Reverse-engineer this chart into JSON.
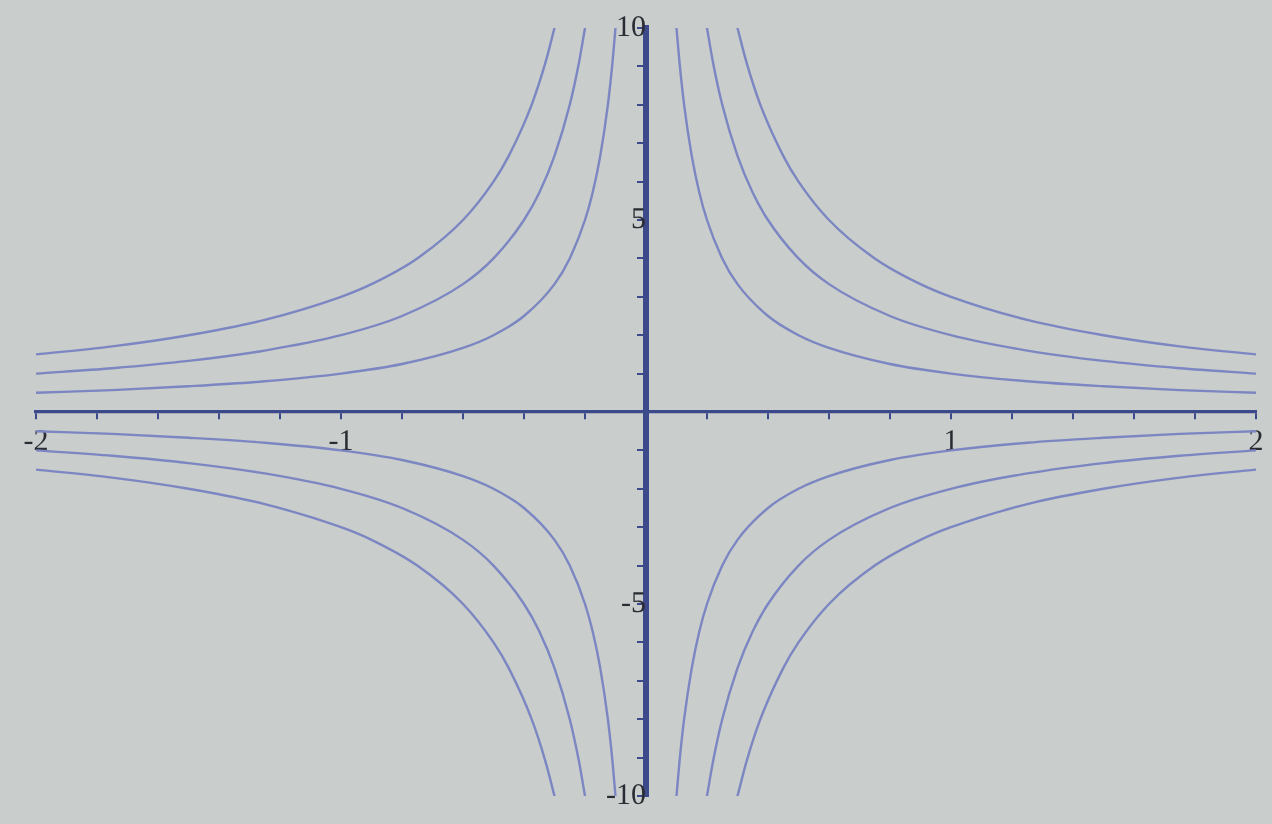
{
  "chart_data": {
    "type": "line",
    "series": [
      {
        "color": "#7b86c2",
        "x": [
          -2,
          -1.75,
          -1.5,
          -1.25,
          -1,
          -0.8,
          -0.6,
          -0.5,
          -0.4,
          -0.3,
          -0.25,
          -0.2,
          -0.175,
          -0.15,
          -0.125,
          -0.11,
          -0.1,
          0,
          0.1,
          0.11,
          0.125,
          0.15,
          0.175,
          0.2,
          0.25,
          0.3,
          0.4,
          0.5,
          0.6,
          0.8,
          1,
          1.25,
          1.5,
          1.75,
          2
        ],
        "values": [
          -0.5,
          -0.57,
          -0.67,
          -0.8,
          -1,
          -1.25,
          -1.67,
          -2,
          -2.5,
          -3.33,
          -4,
          -5,
          -5.71,
          -6.67,
          -8,
          -9.09,
          -10,
          null,
          10,
          9.09,
          8,
          6.67,
          5.71,
          5,
          4,
          3.33,
          2.5,
          2,
          1.67,
          1.25,
          1,
          0.8,
          0.67,
          0.57,
          0.5
        ]
      },
      {
        "color": "#7b86c2",
        "x": [
          -2,
          -1.75,
          -1.5,
          -1.25,
          -1,
          -0.8,
          -0.6,
          -0.5,
          -0.4,
          -0.35,
          -0.3,
          -0.25,
          -0.22,
          -0.2,
          0,
          0.2,
          0.22,
          0.25,
          0.3,
          0.35,
          0.4,
          0.5,
          0.6,
          0.8,
          1,
          1.25,
          1.5,
          1.75,
          2
        ],
        "values": [
          -1,
          -1.14,
          -1.33,
          -1.6,
          -2,
          -2.5,
          -3.33,
          -4,
          -5,
          -5.71,
          -6.67,
          -8,
          -9.09,
          -10,
          null,
          10,
          9.09,
          8,
          6.67,
          5.71,
          5,
          4,
          3.33,
          2.5,
          2,
          1.6,
          1.33,
          1.14,
          1
        ]
      },
      {
        "color": "#7b86c2",
        "x": [
          -2,
          -1.75,
          -1.5,
          -1.25,
          -1,
          -0.9,
          -0.75,
          -0.6,
          -0.5,
          -0.45,
          -0.375,
          -0.33,
          -0.3,
          0,
          0.3,
          0.33,
          0.375,
          0.45,
          0.5,
          0.6,
          0.75,
          0.9,
          1,
          1.25,
          1.5,
          1.75,
          2
        ],
        "values": [
          -1.5,
          -1.71,
          -2,
          -2.4,
          -3,
          -3.33,
          -4,
          -5,
          -6,
          -6.67,
          -8,
          -9.09,
          -10,
          null,
          10,
          9.09,
          8,
          6.67,
          6,
          5,
          4,
          3.33,
          3,
          2.4,
          2,
          1.71,
          1.5
        ]
      },
      {
        "color": "#7b86c2",
        "x": [
          -2,
          -1.75,
          -1.5,
          -1.25,
          -1,
          -0.8,
          -0.6,
          -0.5,
          -0.4,
          -0.3,
          -0.25,
          -0.2,
          -0.175,
          -0.15,
          -0.125,
          -0.11,
          -0.1,
          0,
          0.1,
          0.11,
          0.125,
          0.15,
          0.175,
          0.2,
          0.25,
          0.3,
          0.4,
          0.5,
          0.6,
          0.8,
          1,
          1.25,
          1.5,
          1.75,
          2
        ],
        "values": [
          0.5,
          0.57,
          0.67,
          0.8,
          1,
          1.25,
          1.67,
          2,
          2.5,
          3.33,
          4,
          5,
          5.71,
          6.67,
          8,
          9.09,
          10,
          null,
          -10,
          -9.09,
          -8,
          -6.67,
          -5.71,
          -5,
          -4,
          -3.33,
          -2.5,
          -2,
          -1.67,
          -1.25,
          -1,
          -0.8,
          -0.67,
          -0.57,
          -0.5
        ]
      },
      {
        "color": "#7b86c2",
        "x": [
          -2,
          -1.75,
          -1.5,
          -1.25,
          -1,
          -0.8,
          -0.6,
          -0.5,
          -0.4,
          -0.35,
          -0.3,
          -0.25,
          -0.22,
          -0.2,
          0,
          0.2,
          0.22,
          0.25,
          0.3,
          0.35,
          0.4,
          0.5,
          0.6,
          0.8,
          1,
          1.25,
          1.5,
          1.75,
          2
        ],
        "values": [
          1,
          1.14,
          1.33,
          1.6,
          2,
          2.5,
          3.33,
          4,
          5,
          5.71,
          6.67,
          8,
          9.09,
          10,
          null,
          -10,
          -9.09,
          -8,
          -6.67,
          -5.71,
          -5,
          -4,
          -3.33,
          -2.5,
          -2,
          -1.6,
          -1.33,
          -1.14,
          -1
        ]
      },
      {
        "color": "#7b86c2",
        "x": [
          -2,
          -1.75,
          -1.5,
          -1.25,
          -1,
          -0.9,
          -0.75,
          -0.6,
          -0.5,
          -0.45,
          -0.375,
          -0.33,
          -0.3,
          0,
          0.3,
          0.33,
          0.375,
          0.45,
          0.5,
          0.6,
          0.75,
          0.9,
          1,
          1.25,
          1.5,
          1.75,
          2
        ],
        "values": [
          1.5,
          1.71,
          2,
          2.4,
          3,
          3.33,
          4,
          5,
          6,
          6.67,
          8,
          9.09,
          10,
          null,
          -10,
          -9.09,
          -8,
          -6.67,
          -6,
          -5,
          -4,
          -3.33,
          -3,
          -2.4,
          -2,
          -1.71,
          -1.5
        ]
      }
    ],
    "xlim": [
      -2,
      2
    ],
    "ylim": [
      -10,
      10
    ],
    "xticks": [
      -2,
      {
        "value": -1.8,
        "label": null
      },
      {
        "value": -1.6,
        "label": null
      },
      {
        "value": -1.4,
        "label": null
      },
      {
        "value": -1.2,
        "label": null
      },
      -1,
      {
        "value": -0.8,
        "label": null
      },
      {
        "value": -0.6,
        "label": null
      },
      {
        "value": -0.4,
        "label": null
      },
      {
        "value": -0.2,
        "label": null
      },
      {
        "value": 0.2,
        "label": null
      },
      {
        "value": 0.4,
        "label": null
      },
      {
        "value": 0.6,
        "label": null
      },
      {
        "value": 0.8,
        "label": null
      },
      1,
      {
        "value": 1.2,
        "label": null
      },
      {
        "value": 1.4,
        "label": null
      },
      {
        "value": 1.6,
        "label": null
      },
      {
        "value": 1.8,
        "label": null
      },
      2
    ],
    "yticks": [
      -10,
      {
        "value": -9,
        "label": null
      },
      {
        "value": -8,
        "label": null
      },
      {
        "value": -7,
        "label": null
      },
      {
        "value": -6,
        "label": null
      },
      -5,
      {
        "value": -4,
        "label": null
      },
      {
        "value": -3,
        "label": null
      },
      {
        "value": -2,
        "label": null
      },
      {
        "value": -1,
        "label": null
      },
      {
        "value": 1,
        "label": null
      },
      {
        "value": 2,
        "label": null
      },
      {
        "value": 3,
        "label": null
      },
      {
        "value": 4,
        "label": null
      },
      5,
      {
        "value": 6,
        "label": null
      },
      {
        "value": 7,
        "label": null
      },
      {
        "value": 8,
        "label": null
      },
      {
        "value": 9,
        "label": null
      },
      10
    ],
    "grid": false,
    "legend": false,
    "marker": "none",
    "line_style": "solid"
  }
}
